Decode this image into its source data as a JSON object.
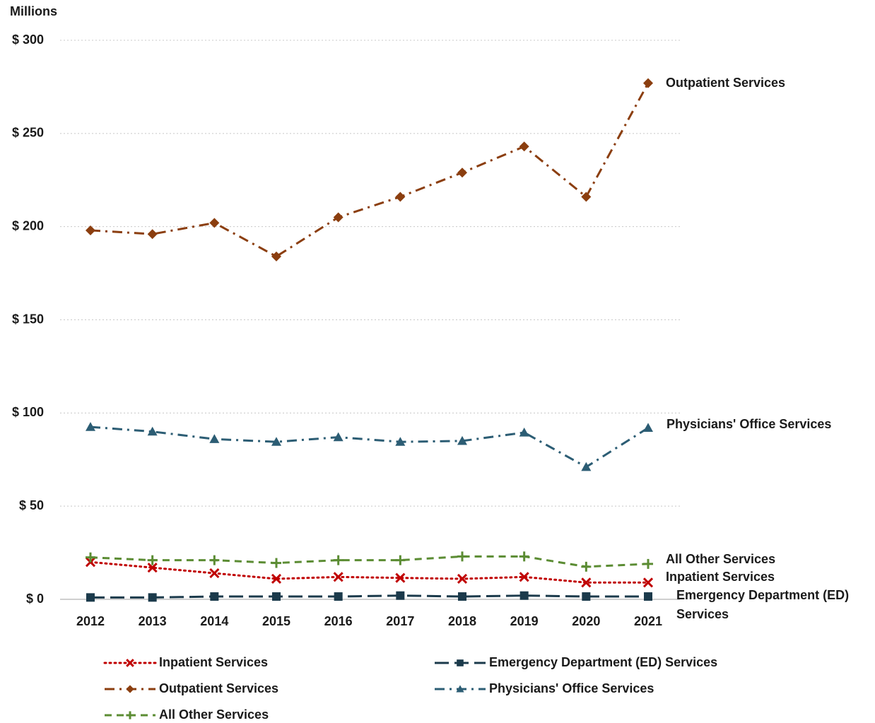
{
  "chart_data": {
    "type": "line",
    "y_label": "Millions",
    "categories": [
      "2012",
      "2013",
      "2014",
      "2015",
      "2016",
      "2017",
      "2018",
      "2019",
      "2020",
      "2021"
    ],
    "ylim": [
      0,
      300
    ],
    "yticks": [
      {
        "value": 0,
        "label": "$ 0"
      },
      {
        "value": 50,
        "label": "$ 50"
      },
      {
        "value": 100,
        "label": "$ 100"
      },
      {
        "value": 150,
        "label": "$ 150"
      },
      {
        "value": 200,
        "label": "$ 200"
      },
      {
        "value": 250,
        "label": "$ 250"
      },
      {
        "value": 300,
        "label": "$ 300"
      }
    ],
    "grid": true,
    "legend": "bottom",
    "series": [
      {
        "name": "Inpatient Services",
        "color": "#c00000",
        "marker": "x",
        "dash": "dot",
        "values": [
          20,
          17,
          14,
          11,
          12,
          11.5,
          11,
          12,
          9,
          9
        ]
      },
      {
        "name": "Emergency Department (ED) Services",
        "color": "#1b3a4b",
        "marker": "square",
        "dash": "longdash",
        "values": [
          1,
          1,
          1.5,
          1.5,
          1.5,
          2,
          1.5,
          2,
          1.5,
          1.5
        ]
      },
      {
        "name": "Outpatient Services",
        "color": "#8b3e0f",
        "marker": "diamond",
        "dash": "dashdot",
        "values": [
          198,
          196,
          202,
          184,
          205,
          216,
          229,
          243,
          216,
          277
        ]
      },
      {
        "name": "Physicians' Office Services",
        "color": "#2c5d74",
        "marker": "triangle",
        "dash": "dashdot",
        "values": [
          92.5,
          90,
          86,
          84.5,
          87,
          84.5,
          85,
          89.5,
          71,
          92
        ]
      },
      {
        "name": "All Other Services",
        "color": "#5b8c33",
        "marker": "plus",
        "dash": "dash",
        "values": [
          22.5,
          21,
          21,
          19.5,
          21,
          21,
          23,
          23,
          17.5,
          19
        ]
      }
    ]
  }
}
